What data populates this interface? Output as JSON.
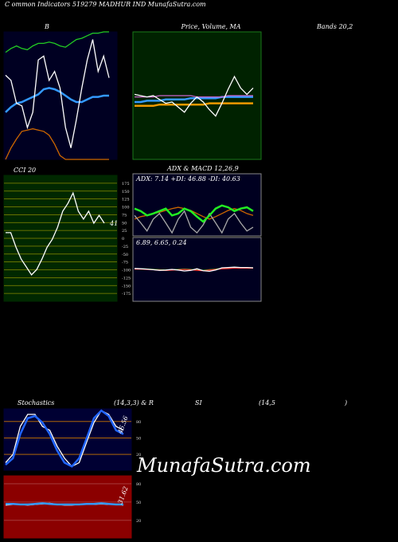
{
  "header": "C ommon  Indicators 519279 MADHUR IND MunafaSutra.com",
  "bands_label": "Bands 20,2",
  "adx_title": "ADX  & MACD 12,26,9",
  "stoch_header": [
    "Stochastics",
    "(14,3,3) & R",
    "SI",
    "(14,5",
    ")"
  ],
  "watermark": "MunafaSutra.com",
  "panels": [
    {
      "title": "B",
      "ylim": [
        0,
        100
      ],
      "series": [
        {
          "color": "#22cc22",
          "values": [
            84,
            87,
            89,
            87,
            86,
            89,
            91,
            91,
            92,
            91,
            89,
            88,
            91,
            94,
            95,
            97,
            99,
            99,
            100,
            100
          ]
        },
        {
          "color": "#cc6600",
          "values": [
            0,
            9,
            16,
            22,
            23,
            24,
            23,
            22,
            19,
            12,
            3,
            0,
            0,
            0,
            0,
            0,
            0,
            0,
            0,
            0
          ]
        },
        {
          "color": "#3399ff",
          "values": [
            37,
            41,
            44,
            45,
            47,
            49,
            51,
            55,
            56,
            55,
            53,
            50,
            47,
            45,
            45,
            47,
            49,
            49,
            50,
            50
          ]
        },
        {
          "color": "#ffffff",
          "values": [
            66,
            62,
            44,
            42,
            25,
            37,
            78,
            81,
            62,
            69,
            56,
            25,
            9,
            31,
            56,
            78,
            94,
            69,
            81,
            64
          ]
        }
      ]
    },
    {
      "title": "Price,  Volume,  MA",
      "ylim": [
        0,
        100
      ],
      "series": [
        {
          "color": "#ee9900",
          "values": [
            42,
            42,
            42,
            42,
            43,
            43,
            43,
            43,
            43,
            43,
            43,
            43,
            44,
            44,
            44,
            44,
            44,
            44,
            44,
            44
          ]
        },
        {
          "color": "#3399ff",
          "values": [
            45,
            45,
            46,
            46,
            46,
            47,
            47,
            47,
            47,
            48,
            48,
            48,
            48,
            48,
            49,
            49,
            49,
            49,
            49,
            49
          ]
        },
        {
          "color": "#cc66cc",
          "values": [
            49,
            49,
            49,
            49,
            50,
            50,
            50,
            50,
            50,
            50,
            49,
            49,
            49,
            49,
            49,
            50,
            50,
            50,
            50,
            50
          ]
        },
        {
          "color": "#ffffff",
          "values": [
            51,
            50,
            49,
            50,
            47,
            44,
            45,
            41,
            37,
            44,
            49,
            45,
            39,
            34,
            44,
            55,
            65,
            56,
            51,
            56
          ]
        }
      ]
    },
    {
      "title": "CCI 20",
      "ylim": [
        -200,
        200
      ],
      "value_label": "41",
      "yticks": [
        175,
        150,
        125,
        100,
        75,
        50,
        25,
        0,
        -25,
        -50,
        -75,
        -100,
        -125,
        -150,
        -175
      ],
      "series": [
        {
          "color": "#ffffff",
          "values": [
            18,
            18,
            -28,
            -66,
            -91,
            -116,
            -99,
            -66,
            -28,
            -3,
            35,
            86,
            111,
            144,
            86,
            61,
            86,
            48,
            73,
            48
          ]
        }
      ]
    },
    {
      "label": "ADX: 7.14  +DI: 46.88  -DI: 40.63",
      "ylim": [
        0,
        100
      ],
      "series": [
        {
          "color": "#cc6600",
          "values": [
            27,
            31,
            33,
            36,
            38,
            41,
            44,
            46,
            44,
            41,
            36,
            31,
            27,
            31,
            36,
            41,
            44,
            41,
            36,
            33
          ]
        },
        {
          "color": "#aaaaaa",
          "values": [
            33,
            21,
            8,
            27,
            36,
            21,
            5,
            27,
            40,
            14,
            5,
            18,
            36,
            21,
            5,
            27,
            36,
            21,
            8,
            14
          ]
        },
        {
          "color": "#22ee22",
          "values": [
            44,
            40,
            33,
            36,
            40,
            44,
            33,
            36,
            44,
            40,
            31,
            23,
            33,
            44,
            49,
            46,
            40,
            44,
            46,
            40
          ]
        }
      ]
    },
    {
      "label": "6.89,  6.65,  0.24",
      "ylim": [
        -100,
        100
      ],
      "series": [
        {
          "color": "#22cc22",
          "values": [
            2,
            2,
            1,
            0,
            -1,
            -2,
            -1,
            0,
            1,
            0,
            -2,
            -3,
            -1,
            1,
            3,
            4,
            5,
            5,
            5,
            5
          ]
        },
        {
          "color": "#ff3333",
          "values": [
            1,
            1,
            0,
            -1,
            -2,
            -3,
            -2,
            -1,
            0,
            -1,
            -3,
            -4,
            -2,
            0,
            2,
            3,
            4,
            4,
            4,
            4
          ]
        },
        {
          "color": "#ffffff",
          "values": [
            3,
            2,
            1,
            -1,
            -3,
            -2,
            0,
            -2,
            -5,
            -3,
            2,
            -4,
            -6,
            -2,
            5,
            6,
            7,
            6,
            6,
            5
          ]
        }
      ]
    },
    {
      "ylim": [
        -9,
        103
      ],
      "value_label": "46.56",
      "yticks": [
        80,
        50,
        20
      ],
      "series": [
        {
          "color": "#ffffff",
          "values": [
            5,
            20,
            71,
            93,
            93,
            71,
            64,
            35,
            13,
            -2,
            5,
            42,
            78,
            100,
            93,
            71,
            64
          ]
        },
        {
          "color": "#2266ff",
          "values": [
            1,
            13,
            57,
            86,
            90,
            78,
            57,
            27,
            5,
            -2,
            13,
            49,
            86,
            100,
            90,
            64,
            57
          ]
        }
      ]
    },
    {
      "ylim": [
        -9,
        93
      ],
      "value_label": "31.62",
      "yticks": [
        80,
        50,
        20
      ],
      "series": [
        {
          "color": "#ffffff",
          "values": [
            45,
            46,
            46,
            45,
            46,
            47,
            48,
            46,
            45,
            45,
            46,
            46,
            46,
            47,
            46,
            46,
            45
          ]
        },
        {
          "color": "#3399ff",
          "values": [
            47,
            47,
            46,
            46,
            47,
            48,
            47,
            46,
            46,
            46,
            46,
            47,
            47,
            48,
            47,
            46,
            46
          ]
        }
      ]
    }
  ]
}
